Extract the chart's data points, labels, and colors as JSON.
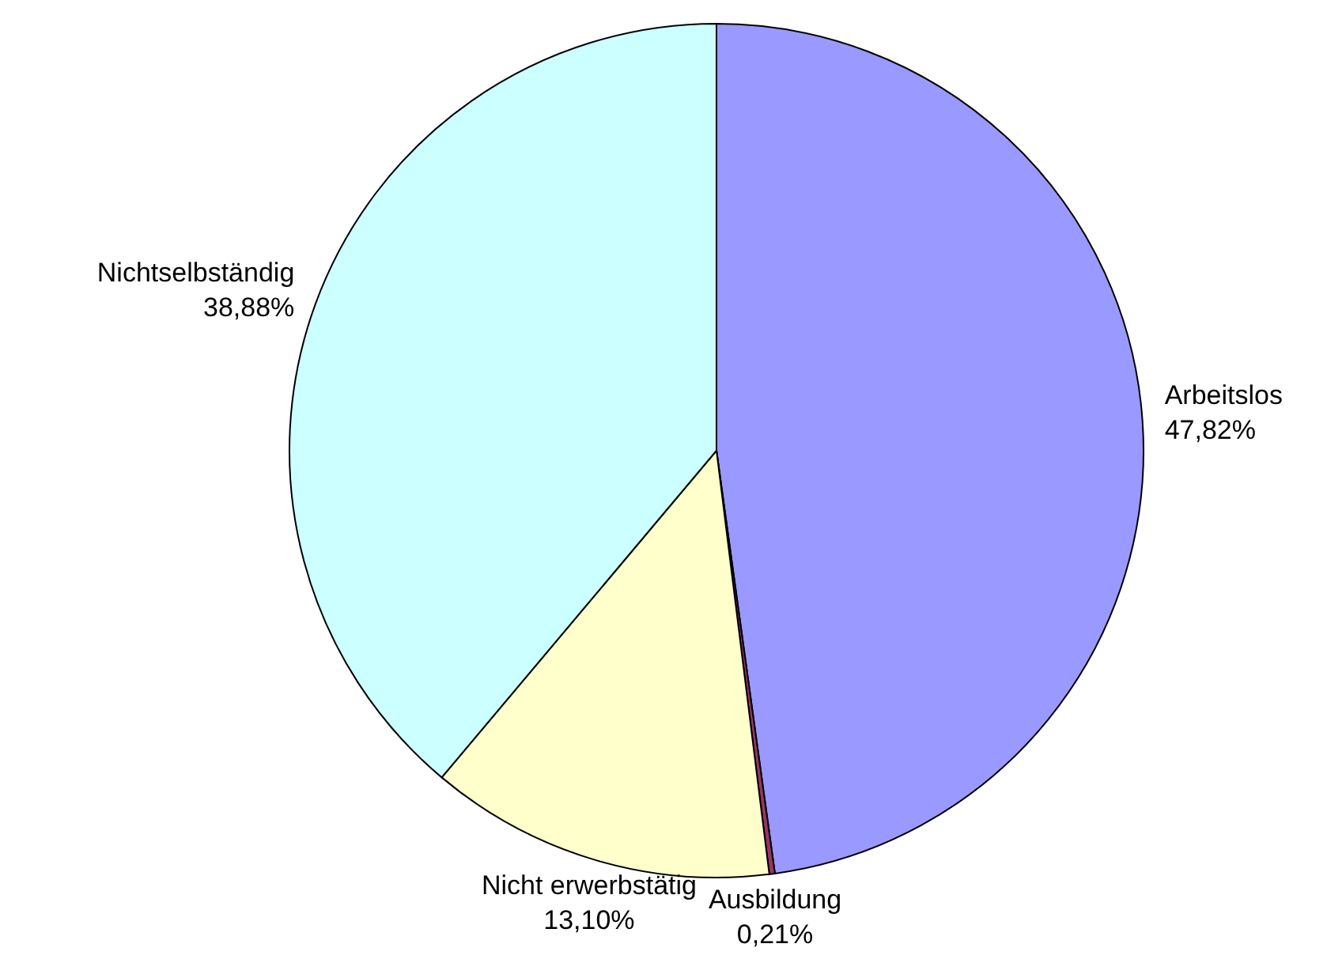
{
  "chart_data": {
    "type": "pie",
    "categories": [
      "Arbeitslos",
      "Ausbildung",
      "Nicht erwerbstätig",
      "Nichtselbständig"
    ],
    "values": [
      47.82,
      0.21,
      13.1,
      38.88
    ],
    "value_labels": [
      "47,82%",
      "0,21%",
      "13,10%",
      "38,88%"
    ],
    "colors": [
      "#9999ff",
      "#993366",
      "#ffffcc",
      "#ccffff"
    ],
    "legend": false
  }
}
